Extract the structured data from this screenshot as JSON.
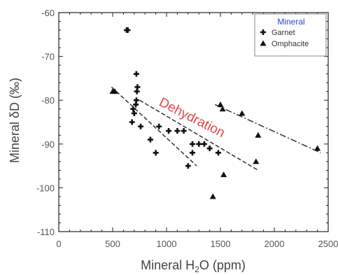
{
  "chart_data": {
    "type": "scatter",
    "title": "",
    "xlabel_parts": {
      "pre": "Mineral H",
      "sub": "2",
      "post": "O (ppm)"
    },
    "ylabel": "Mineral δD (‰)",
    "xlim": [
      0,
      2500
    ],
    "ylim": [
      -110,
      -60
    ],
    "xticks": [
      0,
      500,
      1000,
      1500,
      2000,
      2500
    ],
    "yticks": [
      -110,
      -100,
      -90,
      -80,
      -70,
      -60
    ],
    "grid": false,
    "legend": {
      "title": "Mineral",
      "placement": "top-right"
    },
    "series": [
      {
        "name": "Garnet",
        "marker": "plus",
        "points": [
          [
            640,
            -64
          ],
          [
            630,
            -64
          ],
          [
            720,
            -74
          ],
          [
            730,
            -77
          ],
          [
            725,
            -78
          ],
          [
            720,
            -80
          ],
          [
            715,
            -81
          ],
          [
            690,
            -82
          ],
          [
            700,
            -83
          ],
          [
            760,
            -86
          ],
          [
            680,
            -85
          ],
          [
            850,
            -89
          ],
          [
            900,
            -92
          ],
          [
            930,
            -86
          ],
          [
            1020,
            -87
          ],
          [
            1100,
            -87
          ],
          [
            1160,
            -87
          ],
          [
            1200,
            -95
          ],
          [
            1240,
            -92
          ],
          [
            1240,
            -90
          ],
          [
            1300,
            -90
          ],
          [
            1350,
            -90
          ],
          [
            1400,
            -91
          ],
          [
            1480,
            -92
          ]
        ]
      },
      {
        "name": "Omphacite",
        "marker": "triangle",
        "points": [
          [
            500,
            -78
          ],
          [
            520,
            -78
          ],
          [
            1500,
            -81
          ],
          [
            1520,
            -82
          ],
          [
            1700,
            -83
          ],
          [
            1850,
            -88
          ],
          [
            1830,
            -94
          ],
          [
            1530,
            -97
          ],
          [
            1430,
            -102
          ],
          [
            2400,
            -91
          ]
        ]
      }
    ],
    "trendlines": [
      {
        "style": "dashed",
        "points": [
          [
            490,
            -77
          ],
          [
            1280,
            -95
          ]
        ]
      },
      {
        "style": "dashed",
        "points": [
          [
            750,
            -80
          ],
          [
            1850,
            -96
          ]
        ]
      },
      {
        "style": "dashdot",
        "points": [
          [
            1450,
            -81
          ],
          [
            2430,
            -92
          ]
        ]
      }
    ],
    "annotation": "Dehydration"
  },
  "colors": {
    "marker": "#111111",
    "axis": "#222222",
    "annotation": "#e0484b",
    "legend_title": "#2a3fd6"
  }
}
